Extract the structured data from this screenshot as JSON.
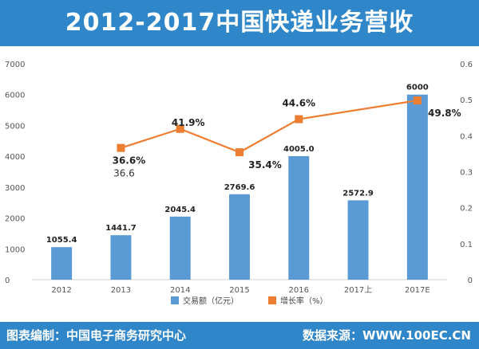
{
  "title": "2012-2017中国快递业务营收",
  "footer": {
    "source_left": "图表编制：中国电子商务研究中心",
    "source_right": "数据来源：WWW.100EC.CN"
  },
  "colors": {
    "header": "#2f86c8",
    "bar": "#5b9bd5",
    "line": "#ed7d31"
  },
  "chart_data": {
    "type": "bar",
    "categories": [
      "2012",
      "2013",
      "2014",
      "2015",
      "2016",
      "2017上",
      "2017E"
    ],
    "series": [
      {
        "name": "交易额（亿元）",
        "type": "bar",
        "axis": "left",
        "values": [
          1055.4,
          1441.7,
          2045.4,
          2769.6,
          4005.0,
          2572.9,
          6000
        ],
        "labels": [
          "1055.4",
          "1441.7",
          "2045.4",
          "2769.6",
          "4005.0",
          "2572.9",
          "6000"
        ]
      },
      {
        "name": "增长率（%）",
        "type": "line",
        "axis": "right",
        "values": [
          null,
          0.366,
          0.419,
          0.354,
          0.446,
          null,
          0.498
        ],
        "labels": [
          "",
          "36.6%",
          "41.9%",
          "35.4%",
          "44.6%",
          "",
          "49.8%"
        ]
      }
    ],
    "extra_annotation": {
      "category": "2013",
      "text": "36.6"
    },
    "y_left": {
      "min": 0,
      "max": 7000,
      "ticks": [
        "0",
        "1000",
        "2000",
        "3000",
        "4000",
        "5000",
        "6000",
        "7000"
      ]
    },
    "y_right": {
      "min": 0,
      "max": 0.6,
      "ticks": [
        "0",
        "0.1",
        "0.2",
        "0.3",
        "0.4",
        "0.5",
        "0.6"
      ]
    },
    "grid": false,
    "legend": {
      "position": "bottom-center",
      "items": [
        "交易额（亿元）",
        "增长率（%）"
      ]
    }
  }
}
